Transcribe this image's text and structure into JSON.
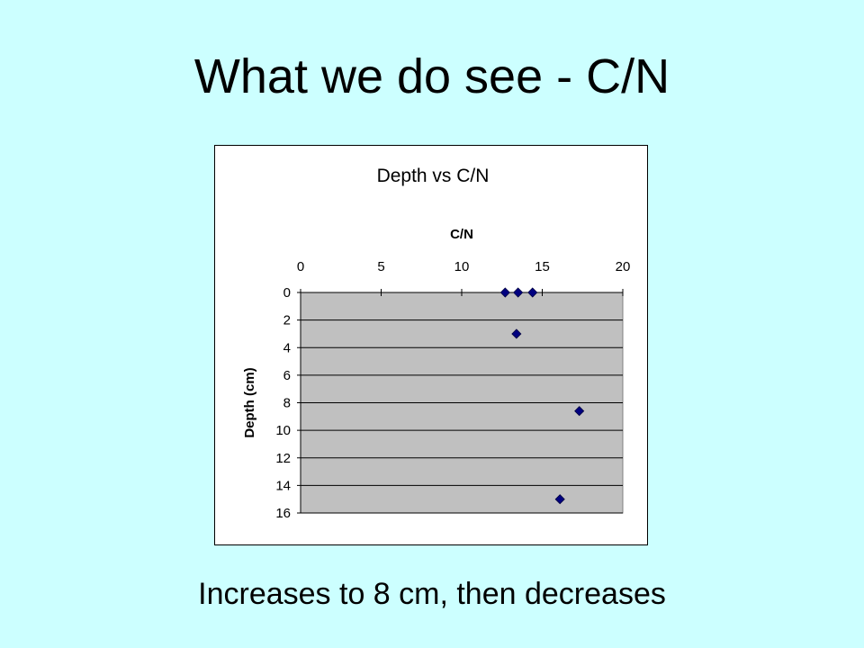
{
  "slide": {
    "title": "What we do see - C/N",
    "caption": "Increases to 8 cm, then decreases"
  },
  "colors": {
    "background": "#CCFFFF",
    "plot_area": "#C0C0C0",
    "marker": "#000080"
  },
  "chart_data": {
    "type": "scatter",
    "title": "Depth vs C/N",
    "xlabel": "C/N",
    "ylabel": "Depth (cm)",
    "xlim": [
      0,
      20
    ],
    "ylim": [
      0,
      16
    ],
    "y_inverted": true,
    "x_axis_position": "top",
    "x_ticks": [
      "0",
      "5",
      "10",
      "15",
      "20"
    ],
    "y_ticks": [
      "0",
      "2",
      "4",
      "6",
      "8",
      "10",
      "12",
      "14",
      "16"
    ],
    "grid": "horizontal",
    "legend": "none",
    "marker": "diamond",
    "points": [
      {
        "x": 12.7,
        "y": 0
      },
      {
        "x": 13.5,
        "y": 0
      },
      {
        "x": 14.4,
        "y": 0
      },
      {
        "x": 13.4,
        "y": 3
      },
      {
        "x": 17.3,
        "y": 8.6
      },
      {
        "x": 16.1,
        "y": 15
      }
    ]
  }
}
